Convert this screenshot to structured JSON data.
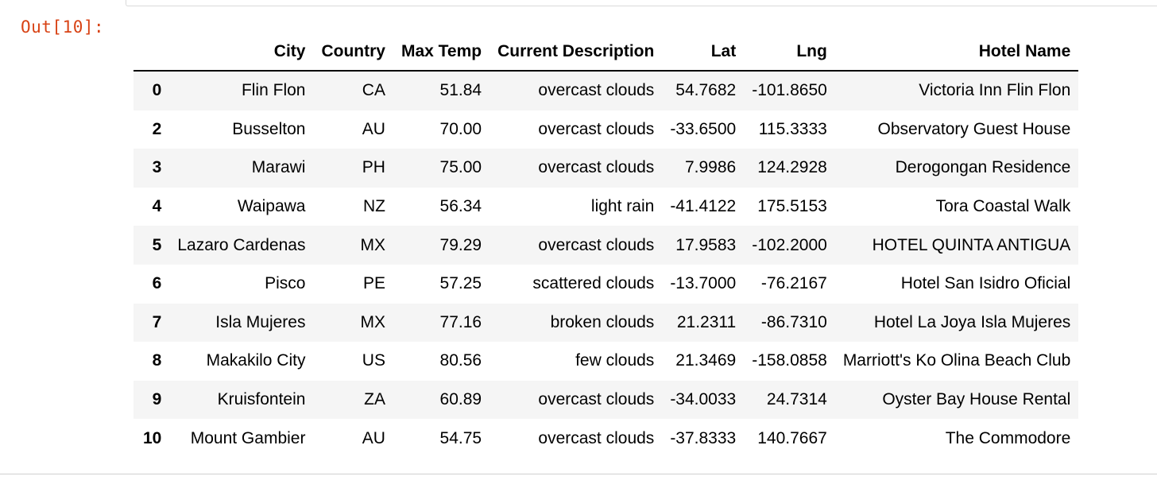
{
  "output_prompt": "Out[10]:",
  "table": {
    "columns": [
      "",
      "City",
      "Country",
      "Max Temp",
      "Current Description",
      "Lat",
      "Lng",
      "Hotel Name"
    ],
    "rows": [
      [
        "0",
        "Flin Flon",
        "CA",
        "51.84",
        "overcast clouds",
        "54.7682",
        "-101.8650",
        "Victoria Inn Flin Flon"
      ],
      [
        "2",
        "Busselton",
        "AU",
        "70.00",
        "overcast clouds",
        "-33.6500",
        "115.3333",
        "Observatory Guest House"
      ],
      [
        "3",
        "Marawi",
        "PH",
        "75.00",
        "overcast clouds",
        "7.9986",
        "124.2928",
        "Derogongan Residence"
      ],
      [
        "4",
        "Waipawa",
        "NZ",
        "56.34",
        "light rain",
        "-41.4122",
        "175.5153",
        "Tora Coastal Walk"
      ],
      [
        "5",
        "Lazaro Cardenas",
        "MX",
        "79.29",
        "overcast clouds",
        "17.9583",
        "-102.2000",
        "HOTEL QUINTA ANTIGUA"
      ],
      [
        "6",
        "Pisco",
        "PE",
        "57.25",
        "scattered clouds",
        "-13.7000",
        "-76.2167",
        "Hotel San Isidro Oficial"
      ],
      [
        "7",
        "Isla Mujeres",
        "MX",
        "77.16",
        "broken clouds",
        "21.2311",
        "-86.7310",
        "Hotel La Joya Isla Mujeres"
      ],
      [
        "8",
        "Makakilo City",
        "US",
        "80.56",
        "few clouds",
        "21.3469",
        "-158.0858",
        "Marriott's Ko Olina Beach Club"
      ],
      [
        "9",
        "Kruisfontein",
        "ZA",
        "60.89",
        "overcast clouds",
        "-34.0033",
        "24.7314",
        "Oyster Bay House Rental"
      ],
      [
        "10",
        "Mount Gambier",
        "AU",
        "54.75",
        "overcast clouds",
        "-37.8333",
        "140.7667",
        "The Commodore"
      ]
    ]
  },
  "colors": {
    "prompt": "#d84315",
    "row_stripe": "#f5f5f5"
  }
}
